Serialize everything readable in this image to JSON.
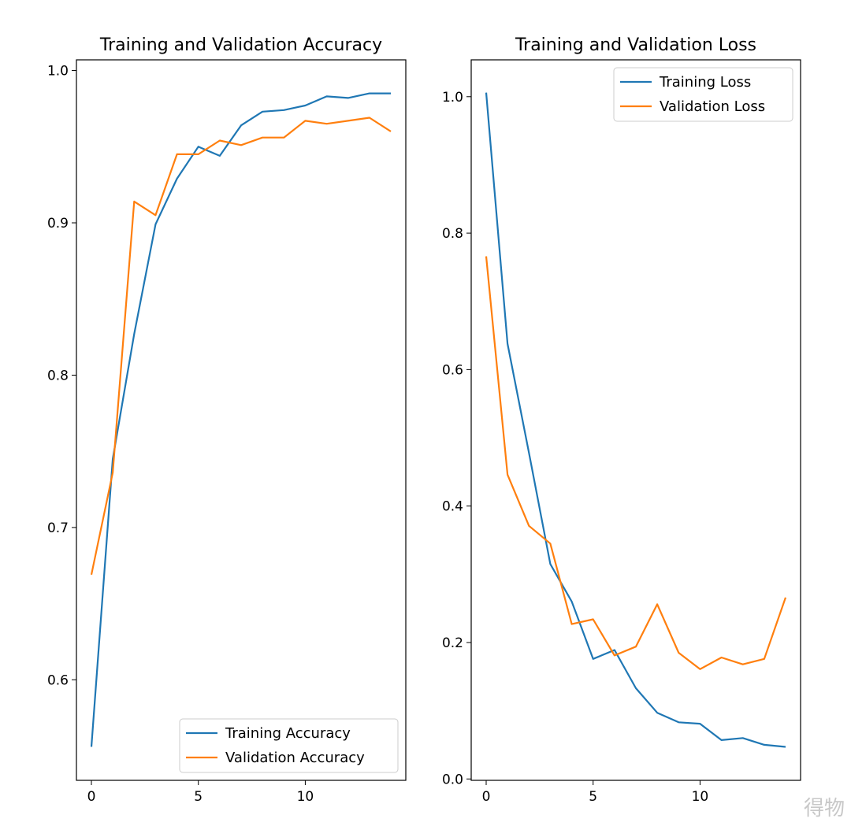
{
  "chart_data": [
    {
      "type": "line",
      "title": "Training and Validation Accuracy",
      "x": [
        0,
        1,
        2,
        3,
        4,
        5,
        6,
        7,
        8,
        9,
        10,
        11,
        12,
        13,
        14
      ],
      "xlim": [
        -0.7,
        14.7
      ],
      "ylim": [
        0.534,
        1.007
      ],
      "xticks": [
        0,
        5,
        10
      ],
      "yticks": [
        0.6,
        0.7,
        0.8,
        0.9,
        1.0
      ],
      "ytick_labels": [
        "0.6",
        "0.7",
        "0.8",
        "0.9",
        "1.0"
      ],
      "xtick_labels": [
        "0",
        "5",
        "10"
      ],
      "grid": false,
      "legend_placement": "lower-right",
      "series": [
        {
          "name": "Training Accuracy",
          "color": "#1f77b4",
          "values": [
            0.556,
            0.745,
            0.827,
            0.899,
            0.929,
            0.95,
            0.944,
            0.964,
            0.973,
            0.974,
            0.977,
            0.983,
            0.982,
            0.985,
            0.985
          ]
        },
        {
          "name": "Validation Accuracy",
          "color": "#ff7f0e",
          "values": [
            0.669,
            0.736,
            0.914,
            0.905,
            0.945,
            0.945,
            0.954,
            0.951,
            0.956,
            0.956,
            0.967,
            0.965,
            0.967,
            0.969,
            0.96
          ]
        }
      ]
    },
    {
      "type": "line",
      "title": "Training and Validation Loss",
      "x": [
        0,
        1,
        2,
        3,
        4,
        5,
        6,
        7,
        8,
        9,
        10,
        11,
        12,
        13,
        14
      ],
      "xlim": [
        -0.7,
        14.7
      ],
      "ylim": [
        -0.002,
        1.054
      ],
      "xticks": [
        0,
        5,
        10
      ],
      "yticks": [
        0.0,
        0.2,
        0.4,
        0.6,
        0.8,
        1.0
      ],
      "ytick_labels": [
        "0.0",
        "0.2",
        "0.4",
        "0.6",
        "0.8",
        "1.0"
      ],
      "xtick_labels": [
        "0",
        "5",
        "10"
      ],
      "grid": false,
      "legend_placement": "upper-right",
      "series": [
        {
          "name": "Training Loss",
          "color": "#1f77b4",
          "values": [
            1.006,
            0.638,
            0.478,
            0.315,
            0.26,
            0.176,
            0.189,
            0.133,
            0.097,
            0.083,
            0.081,
            0.057,
            0.06,
            0.05,
            0.047
          ]
        },
        {
          "name": "Validation Loss",
          "color": "#ff7f0e",
          "values": [
            0.766,
            0.446,
            0.371,
            0.345,
            0.227,
            0.234,
            0.181,
            0.194,
            0.256,
            0.185,
            0.161,
            0.178,
            0.168,
            0.176,
            0.266
          ]
        }
      ]
    }
  ],
  "watermark": "得物"
}
